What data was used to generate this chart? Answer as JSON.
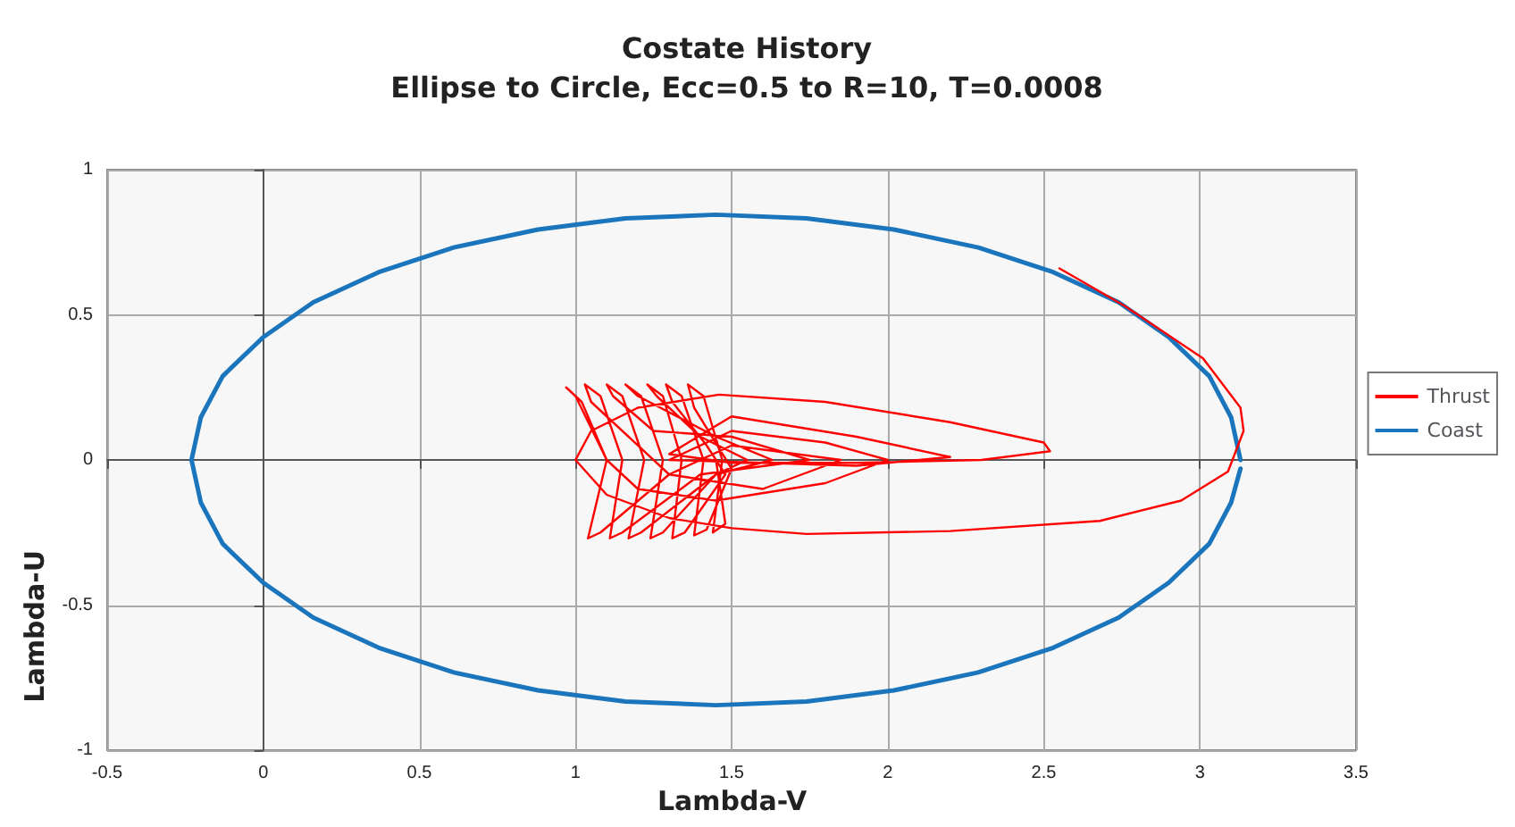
{
  "chart_data": {
    "type": "line",
    "title": "Costate History",
    "subtitle": "Ellipse to Circle, Ecc=0.5 to R=10, T=0.0008",
    "xlabel": "Lambda-V",
    "ylabel": "Lambda-U",
    "xlim": [
      -0.5,
      3.5
    ],
    "xticks": [
      -0.5,
      0,
      0.5,
      1,
      1.5,
      2,
      2.5,
      3,
      3.5
    ],
    "ylim": [
      -1,
      1
    ],
    "yticks": [
      -1,
      -0.5,
      0,
      0.5,
      1
    ],
    "grid": true,
    "legend": "right",
    "marker": "none",
    "line_style": "solid",
    "series": [
      {
        "name": "Thrust",
        "color": "#ff0000",
        "x": [
          2.55,
          2.76,
          3.01,
          3.13,
          3.14,
          3.09,
          2.94,
          2.68,
          2.2,
          1.74,
          1.5,
          1.3,
          1.1,
          1.0,
          1.05,
          1.2,
          1.46,
          1.8,
          2.2,
          2.5,
          2.52,
          2.3,
          1.9,
          1.5,
          1.3,
          1.5,
          1.9,
          2.2,
          1.9,
          1.6,
          1.3,
          1.5,
          1.8,
          2.0,
          1.8,
          1.45,
          1.2,
          1.1,
          1.0,
          0.97,
          1.02,
          1.1,
          1.04,
          1.08,
          1.3,
          1.5,
          1.85,
          1.6,
          1.3,
          1.05,
          1.03,
          1.08,
          1.15,
          1.11,
          1.15,
          1.4,
          1.75,
          1.5,
          1.25,
          1.12,
          1.1,
          1.15,
          1.22,
          1.17,
          1.21,
          1.45,
          1.63,
          1.45,
          1.2,
          1.16,
          1.21,
          1.28,
          1.24,
          1.28,
          1.45,
          1.55,
          1.4,
          1.26,
          1.23,
          1.28,
          1.34,
          1.31,
          1.35,
          1.48,
          1.42,
          1.31,
          1.29,
          1.34,
          1.41,
          1.38,
          1.42,
          1.5,
          1.38,
          1.36,
          1.41,
          1.47,
          1.44,
          1.48,
          1.45
        ],
        "values": [
          0.66,
          0.53,
          0.35,
          0.18,
          0.1,
          -0.04,
          -0.14,
          -0.21,
          -0.245,
          -0.255,
          -0.235,
          -0.2,
          -0.12,
          0.0,
          0.1,
          0.18,
          0.225,
          0.2,
          0.13,
          0.06,
          0.03,
          0.0,
          -0.01,
          -0.01,
          0.02,
          0.15,
          0.08,
          0.01,
          -0.02,
          -0.01,
          0.0,
          0.1,
          0.06,
          0.0,
          -0.08,
          -0.14,
          -0.1,
          0.0,
          0.22,
          0.25,
          0.2,
          0.0,
          -0.27,
          -0.25,
          -0.05,
          0.05,
          0.0,
          -0.1,
          -0.05,
          0.2,
          0.26,
          0.22,
          0.0,
          -0.27,
          -0.25,
          -0.05,
          0.0,
          0.08,
          0.1,
          0.22,
          0.26,
          0.22,
          0.0,
          -0.27,
          -0.25,
          -0.05,
          0.0,
          0.08,
          0.22,
          0.26,
          0.22,
          0.0,
          -0.27,
          -0.25,
          -0.05,
          0.0,
          0.08,
          0.22,
          0.26,
          0.22,
          0.0,
          -0.27,
          -0.25,
          -0.05,
          0.05,
          0.2,
          0.26,
          0.22,
          0.0,
          -0.26,
          -0.24,
          -0.03,
          0.18,
          0.26,
          0.22,
          0.0,
          -0.25,
          -0.22,
          0.0
        ]
      },
      {
        "name": "Coast",
        "color": "#1a75bc",
        "x": [
          3.13,
          3.1,
          3.03,
          2.9,
          2.74,
          2.53,
          2.29,
          2.02,
          1.74,
          1.45,
          1.16,
          0.88,
          0.61,
          0.37,
          0.16,
          0.0,
          -0.13,
          -0.2,
          -0.23,
          -0.2,
          -0.13,
          0.0,
          0.16,
          0.37,
          0.61,
          0.88,
          1.16,
          1.45,
          1.74,
          2.02,
          2.29,
          2.53,
          2.74,
          2.9,
          3.03,
          3.1,
          3.13
        ],
        "values": [
          0,
          0.147,
          0.289,
          0.423,
          0.543,
          0.647,
          0.732,
          0.794,
          0.832,
          0.845,
          0.832,
          0.794,
          0.732,
          0.647,
          0.543,
          0.423,
          0.289,
          0.147,
          0,
          -0.147,
          -0.289,
          -0.423,
          -0.543,
          -0.647,
          -0.732,
          -0.794,
          -0.832,
          -0.845,
          -0.832,
          -0.794,
          -0.732,
          -0.647,
          -0.543,
          -0.423,
          -0.289,
          -0.147,
          -0.03
        ]
      }
    ]
  }
}
